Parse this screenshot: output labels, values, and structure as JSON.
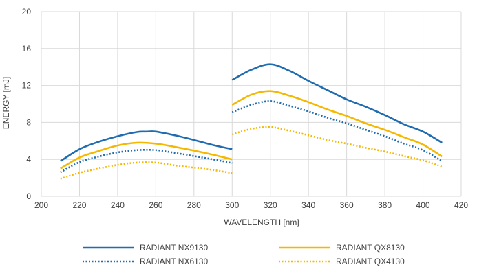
{
  "chart_data": {
    "type": "line",
    "title": "",
    "xlabel": "WAVELENGTH [nm]",
    "ylabel": "ENERGY [mJ]",
    "xlim": [
      200,
      420
    ],
    "ylim": [
      0,
      20
    ],
    "xticks": [
      200,
      220,
      240,
      260,
      280,
      300,
      320,
      340,
      360,
      380,
      400,
      420
    ],
    "yticks": [
      0,
      4,
      8,
      12,
      16,
      20
    ],
    "grid": "both",
    "legend_position": "bottom",
    "series": [
      {
        "name": "RADIANT NX9130",
        "color": "#1f6cb0",
        "dash": "solid",
        "segments": [
          [
            [
              210,
              3.8
            ],
            [
              220,
              5.1
            ],
            [
              230,
              5.9
            ],
            [
              240,
              6.5
            ],
            [
              250,
              6.95
            ],
            [
              255,
              7.0
            ],
            [
              260,
              7.0
            ],
            [
              270,
              6.6
            ],
            [
              280,
              6.1
            ],
            [
              290,
              5.55
            ],
            [
              300,
              5.1
            ]
          ],
          [
            [
              300,
              12.6
            ],
            [
              310,
              13.7
            ],
            [
              320,
              14.3
            ],
            [
              330,
              13.6
            ],
            [
              340,
              12.5
            ],
            [
              350,
              11.5
            ],
            [
              360,
              10.5
            ],
            [
              370,
              9.7
            ],
            [
              380,
              8.8
            ],
            [
              390,
              7.8
            ],
            [
              400,
              7.0
            ],
            [
              410,
              5.8
            ]
          ]
        ]
      },
      {
        "name": "RADIANT QX8130",
        "color": "#f5b800",
        "dash": "solid",
        "segments": [
          [
            [
              210,
              3.0
            ],
            [
              220,
              4.2
            ],
            [
              230,
              4.9
            ],
            [
              240,
              5.5
            ],
            [
              250,
              5.8
            ],
            [
              260,
              5.7
            ],
            [
              270,
              5.35
            ],
            [
              280,
              4.95
            ],
            [
              290,
              4.5
            ],
            [
              300,
              4.0
            ]
          ],
          [
            [
              300,
              9.9
            ],
            [
              310,
              11.0
            ],
            [
              320,
              11.4
            ],
            [
              330,
              10.9
            ],
            [
              340,
              10.2
            ],
            [
              350,
              9.4
            ],
            [
              360,
              8.7
            ],
            [
              370,
              7.9
            ],
            [
              380,
              7.2
            ],
            [
              390,
              6.4
            ],
            [
              400,
              5.6
            ],
            [
              410,
              4.3
            ]
          ]
        ]
      },
      {
        "name": "RADIANT NX6130",
        "color": "#1f6cb0",
        "dash": "dotted",
        "segments": [
          [
            [
              210,
              2.6
            ],
            [
              220,
              3.7
            ],
            [
              230,
              4.3
            ],
            [
              240,
              4.75
            ],
            [
              250,
              5.0
            ],
            [
              260,
              5.0
            ],
            [
              270,
              4.7
            ],
            [
              280,
              4.35
            ],
            [
              290,
              4.0
            ],
            [
              300,
              3.6
            ]
          ],
          [
            [
              300,
              9.1
            ],
            [
              310,
              9.9
            ],
            [
              320,
              10.3
            ],
            [
              330,
              9.8
            ],
            [
              340,
              9.2
            ],
            [
              350,
              8.5
            ],
            [
              360,
              7.9
            ],
            [
              370,
              7.2
            ],
            [
              380,
              6.5
            ],
            [
              390,
              5.7
            ],
            [
              400,
              5.0
            ],
            [
              410,
              3.8
            ]
          ]
        ]
      },
      {
        "name": "RADIANT QX4130",
        "color": "#f5b800",
        "dash": "dotted",
        "segments": [
          [
            [
              210,
              1.9
            ],
            [
              220,
              2.55
            ],
            [
              230,
              3.0
            ],
            [
              240,
              3.4
            ],
            [
              250,
              3.65
            ],
            [
              260,
              3.65
            ],
            [
              270,
              3.35
            ],
            [
              280,
              3.1
            ],
            [
              290,
              2.85
            ],
            [
              300,
              2.5
            ]
          ],
          [
            [
              300,
              6.7
            ],
            [
              310,
              7.3
            ],
            [
              320,
              7.5
            ],
            [
              330,
              7.1
            ],
            [
              340,
              6.6
            ],
            [
              350,
              6.1
            ],
            [
              360,
              5.7
            ],
            [
              370,
              5.25
            ],
            [
              380,
              4.85
            ],
            [
              390,
              4.35
            ],
            [
              400,
              3.9
            ],
            [
              410,
              3.2
            ]
          ]
        ]
      }
    ]
  }
}
